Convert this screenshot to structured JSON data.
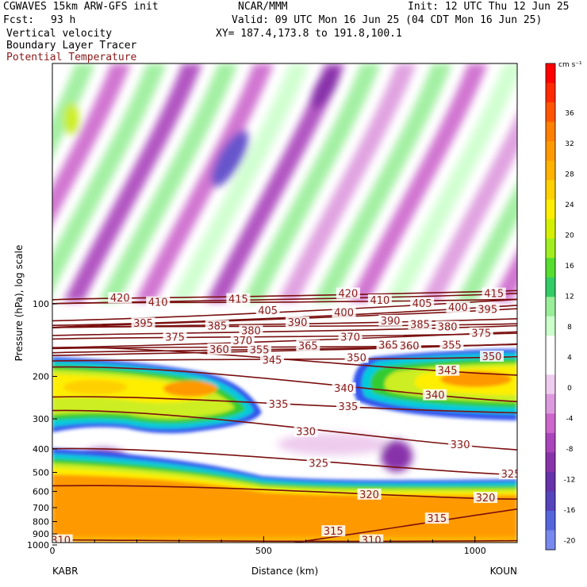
{
  "header": {
    "title": "CGWAVES 15km ARW-GFS init",
    "org": "NCAR/MMM",
    "init": "Init: 12 UTC Thu 12 Jun 25",
    "fcst_label": "Fcst:",
    "fcst_value": "93 h",
    "valid": "Valid: 09 UTC Mon 16 Jun 25 (04 CDT Mon 16 Jun 25)",
    "field1": "Vertical velocity",
    "field2": "Boundary Layer Tracer",
    "field3": "Potential Temperature",
    "xy": "XY= 187.4,173.8 to 191.8,100.1"
  },
  "chart_data": {
    "type": "heatmap",
    "xlabel": "Distance (km)",
    "ylabel": "Pressure (hPa), log scale",
    "xlim": [
      0,
      1100
    ],
    "x_ticks": [
      "0",
      "500",
      "1000"
    ],
    "y_ticks": [
      "100",
      "200",
      "300",
      "400",
      "500",
      "600",
      "700",
      "800",
      "900",
      "1000"
    ],
    "y_tick_values": [
      100,
      200,
      300,
      400,
      500,
      600,
      700,
      800,
      900,
      1000
    ],
    "left_station": "KABR",
    "right_station": "KOUN",
    "colorbar": {
      "units": "cm s⁻¹",
      "labels": [
        "36",
        "32",
        "28",
        "24",
        "20",
        "16",
        "12",
        "8",
        "4",
        "0",
        "-4",
        "-8",
        "-12",
        "-16",
        "-20"
      ],
      "colors": [
        "#ff0000",
        "#ff2a00",
        "#ff5500",
        "#ff8000",
        "#ff9900",
        "#ffb200",
        "#ffd000",
        "#ffee00",
        "#d4f000",
        "#a0ee20",
        "#55dd30",
        "#33cc66",
        "#99ee99",
        "#ccffcc",
        "#ffffff",
        "#ffffff",
        "#eeccee",
        "#dd99dd",
        "#cc66cc",
        "#aa44bb",
        "#8833aa",
        "#6633aa",
        "#5544bb",
        "#5566dd",
        "#7788ee"
      ]
    },
    "isentropes": [
      {
        "value": 310,
        "labels": [
          {
            "x": 20,
            "p": 960
          },
          {
            "x": 755,
            "p": 960
          }
        ]
      },
      {
        "value": 315,
        "labels": [
          {
            "x": 665,
            "p": 880
          },
          {
            "x": 910,
            "p": 780
          }
        ]
      },
      {
        "value": 320,
        "labels": [
          {
            "x": 750,
            "p": 620
          },
          {
            "x": 1025,
            "p": 640
          }
        ]
      },
      {
        "value": 325,
        "labels": [
          {
            "x": 630,
            "p": 460
          },
          {
            "x": 1085,
            "p": 510
          }
        ]
      },
      {
        "value": 330,
        "labels": [
          {
            "x": 600,
            "p": 340
          },
          {
            "x": 965,
            "p": 385
          }
        ]
      },
      {
        "value": 335,
        "labels": [
          {
            "x": 535,
            "p": 262
          },
          {
            "x": 700,
            "p": 268
          }
        ]
      },
      {
        "value": 340,
        "labels": [
          {
            "x": 690,
            "p": 225
          },
          {
            "x": 905,
            "p": 240
          }
        ]
      },
      {
        "value": 345,
        "labels": [
          {
            "x": 520,
            "p": 172
          },
          {
            "x": 935,
            "p": 190
          }
        ]
      },
      {
        "value": 350,
        "labels": [
          {
            "x": 720,
            "p": 168
          },
          {
            "x": 1040,
            "p": 166
          }
        ]
      },
      {
        "value": 355,
        "labels": [
          {
            "x": 490,
            "p": 156
          },
          {
            "x": 945,
            "p": 149
          }
        ]
      },
      {
        "value": 360,
        "labels": [
          {
            "x": 395,
            "p": 155
          },
          {
            "x": 845,
            "p": 150
          }
        ]
      },
      {
        "value": 365,
        "labels": [
          {
            "x": 605,
            "p": 150
          },
          {
            "x": 795,
            "p": 149
          }
        ]
      },
      {
        "value": 370,
        "labels": [
          {
            "x": 705,
            "p": 138
          },
          {
            "x": 450,
            "p": 143
          }
        ]
      },
      {
        "value": 375,
        "labels": [
          {
            "x": 290,
            "p": 138
          },
          {
            "x": 1015,
            "p": 133
          }
        ]
      },
      {
        "value": 380,
        "labels": [
          {
            "x": 470,
            "p": 130
          },
          {
            "x": 935,
            "p": 125
          }
        ]
      },
      {
        "value": 385,
        "labels": [
          {
            "x": 390,
            "p": 124
          },
          {
            "x": 870,
            "p": 122
          }
        ]
      },
      {
        "value": 390,
        "labels": [
          {
            "x": 580,
            "p": 120
          },
          {
            "x": 800,
            "p": 118
          }
        ]
      },
      {
        "value": 395,
        "labels": [
          {
            "x": 215,
            "p": 121
          },
          {
            "x": 1030,
            "p": 106
          }
        ]
      },
      {
        "value": 400,
        "labels": [
          {
            "x": 690,
            "p": 109
          },
          {
            "x": 960,
            "p": 104
          }
        ]
      },
      {
        "value": 405,
        "labels": [
          {
            "x": 510,
            "p": 107
          },
          {
            "x": 875,
            "p": 100
          }
        ]
      },
      {
        "value": 410,
        "labels": [
          {
            "x": 250,
            "p": 99
          },
          {
            "x": 775,
            "p": 97
          }
        ]
      },
      {
        "value": 415,
        "labels": [
          {
            "x": 440,
            "p": 96
          },
          {
            "x": 1045,
            "p": 91
          }
        ]
      },
      {
        "value": 420,
        "labels": [
          {
            "x": 160,
            "p": 95
          },
          {
            "x": 700,
            "p": 91
          }
        ]
      }
    ]
  }
}
